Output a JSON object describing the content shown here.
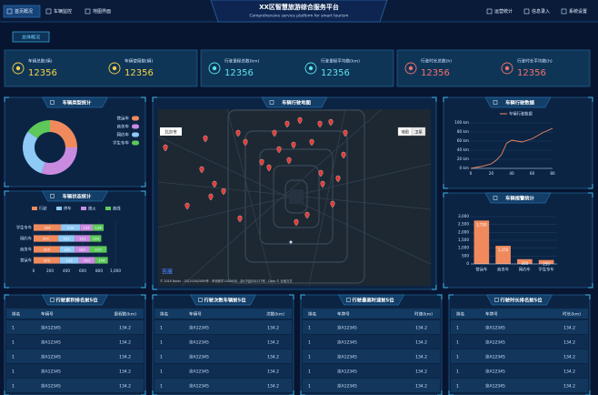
{
  "header": {
    "title": "XX区智慧旅游综合服务平台",
    "subtitle": "Comprehensive service platform for smart tourism",
    "nav_left": [
      "首页概况",
      "车辆监控",
      "地图界面"
    ],
    "nav_right": [
      "运营统计",
      "信息录入",
      "系统设置"
    ]
  },
  "tab": "总体概况",
  "stats": [
    {
      "color": "#f5d34a",
      "items": [
        {
          "label": "车辆总数(辆)",
          "value": 12356
        },
        {
          "label": "车辆使用数(辆)",
          "value": 12356
        }
      ]
    },
    {
      "color": "#5fe3e6",
      "items": [
        {
          "label": "行驶里程总数(km)",
          "value": 12356
        },
        {
          "label": "行驶里程平均数(km)",
          "value": 12356
        }
      ]
    },
    {
      "color": "#f2716e",
      "items": [
        {
          "label": "行驶时长总数(h)",
          "value": 12356
        },
        {
          "label": "行驶时长平均数(h)",
          "value": 12356
        }
      ]
    }
  ],
  "chart_data": [
    {
      "type": "pie",
      "title": "车辆类型统计",
      "donut": true,
      "categories": [
        "营运车",
        "商务车",
        "网约车",
        "学生专车"
      ],
      "values": [
        25,
        30,
        30,
        15
      ],
      "colors": [
        "#f08a5d",
        "#c98be0",
        "#8fc9f5",
        "#5cc95a"
      ]
    },
    {
      "type": "stacked_bar",
      "orientation": "horizontal",
      "title": "车辆状态统计",
      "categories": [
        "学生专车",
        "网约车",
        "商务车",
        "营运车"
      ],
      "series": [
        {
          "name": "行驶",
          "color": "#f08a5d",
          "values": [
            334,
            301,
            320,
            320
          ]
        },
        {
          "name": "停车",
          "color": "#8fc9f5",
          "values": [
            234,
            201,
            182,
            232
          ]
        },
        {
          "name": "熄火",
          "color": "#c98be0",
          "values": [
            154,
            191,
            182,
            201
          ]
        },
        {
          "name": "离线",
          "color": "#5cc95a",
          "values": [
            134,
            134,
            210,
            154
          ]
        }
      ],
      "xlim": [
        0,
        1000
      ],
      "xticks": [
        0,
        200,
        400,
        600,
        800,
        {
          "value": 1000,
          "label": "1,000"
        }
      ]
    },
    {
      "type": "line",
      "title": "车辆行驶数据",
      "x": [
        0,
        10,
        20,
        25,
        30,
        35,
        40,
        50,
        60,
        70,
        80
      ],
      "series": [
        {
          "name": "车辆行驶数据",
          "color": "#f08a5d",
          "values": [
            0,
            4,
            10,
            18,
            30,
            55,
            62,
            58,
            65,
            78,
            88
          ]
        }
      ],
      "xlim": [
        0,
        80
      ],
      "xticks": [
        0,
        20,
        40,
        60,
        80
      ],
      "ylim": [
        0,
        100
      ],
      "yticks": [
        {
          "value": 0,
          "label": "0 km"
        },
        {
          "value": 20,
          "label": "20 km"
        },
        {
          "value": 40,
          "label": "40 km"
        },
        {
          "value": 60,
          "label": "60 km"
        },
        {
          "value": 80,
          "label": "80 km"
        },
        {
          "value": 100,
          "label": "100 km"
        }
      ]
    },
    {
      "type": "bar",
      "title": "车辆报警统计",
      "categories": [
        "营运车",
        "商务车",
        "网约车",
        "学生专车"
      ],
      "values": [
        2750,
        1150,
        300,
        250
      ],
      "value_labels": [
        "2,750",
        "1,150",
        "300",
        "250"
      ],
      "color": "#f08a5d",
      "ylim": [
        0,
        3000
      ],
      "yticks": [
        0,
        500,
        {
          "value": 1000,
          "label": "1,000"
        },
        {
          "value": 1500,
          "label": "1,500"
        },
        {
          "value": 2000,
          "label": "2,000"
        },
        {
          "value": 2500,
          "label": "2,500"
        },
        {
          "value": 3000,
          "label": "3,000"
        }
      ]
    }
  ],
  "map": {
    "title": "车辆行驶地图",
    "city": "北京市",
    "buttons": [
      "地图",
      "卫星"
    ],
    "logo": "百度",
    "copyright": "© 2018 Baidu - GS(2016)2089号 - 甲测资字1100930 - 京ICP证030173号 - Data © 长地万方"
  },
  "tables": [
    {
      "title": "行驶累积排名前5位",
      "columns": [
        "排名",
        "车辆号",
        "里程数(km)"
      ],
      "rows": [
        [
          "1",
          "京A12345",
          "134.2"
        ],
        [
          "1",
          "京A12345",
          "134.2"
        ],
        [
          "1",
          "京A12345",
          "134.2"
        ],
        [
          "1",
          "京A12345",
          "134.2"
        ],
        [
          "1",
          "京A12345",
          "134.2"
        ]
      ]
    },
    {
      "title": "行驶次数车辆前5位",
      "columns": [
        "排名",
        "车辆号",
        "次数(km)"
      ],
      "rows": [
        [
          "1",
          "京A12345",
          "134.2"
        ],
        [
          "1",
          "京A12345",
          "134.2"
        ],
        [
          "1",
          "京A12345",
          "134.2"
        ],
        [
          "1",
          "京A12345",
          "134.2"
        ],
        [
          "1",
          "京A12345",
          "134.2"
        ]
      ]
    },
    {
      "title": "行驶最高时速前5位",
      "columns": [
        "排名",
        "车牌号",
        "时速(km)"
      ],
      "rows": [
        [
          "1",
          "京A12345",
          "134.2"
        ],
        [
          "1",
          "京A12345",
          "134.2"
        ],
        [
          "1",
          "京A12345",
          "134.2"
        ],
        [
          "1",
          "京A12345",
          "134.2"
        ],
        [
          "1",
          "京A12345",
          "134.2"
        ]
      ]
    },
    {
      "title": "行驶时长排名前5位",
      "columns": [
        "排名",
        "车牌号",
        "时长(km)"
      ],
      "rows": [
        [
          "1",
          "京A12345",
          "134.2"
        ],
        [
          "1",
          "京A12345",
          "134.2"
        ],
        [
          "1",
          "京A12345",
          "134.2"
        ],
        [
          "1",
          "京A12345",
          "134.2"
        ],
        [
          "1",
          "京A12345",
          "134.2"
        ]
      ]
    }
  ]
}
